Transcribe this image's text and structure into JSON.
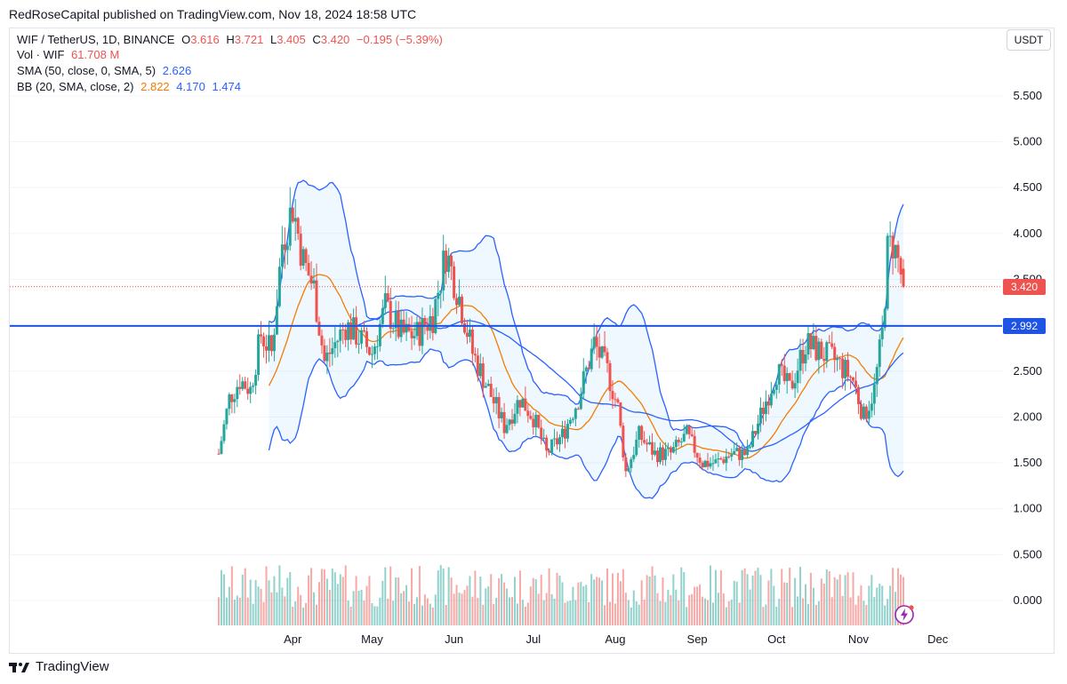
{
  "header": {
    "publisher_line": "RedRoseCapital published on TradingView.com, Nov 18, 2024 18:58 UTC",
    "currency_button": "USDT"
  },
  "legend": {
    "symbol": "WIF / TetherUS, 1D, BINANCE",
    "o_label": "O",
    "o_value": "3.616",
    "h_label": "H",
    "h_value": "3.721",
    "l_label": "L",
    "l_value": "3.405",
    "c_label": "C",
    "c_value": "3.420",
    "change": "−0.195 (−5.39%)",
    "vol_label": "Vol · WIF",
    "vol_value": "61.708 M",
    "sma_label": "SMA (50, close, 0, SMA, 5)",
    "sma_value": "2.626",
    "bb_label": "BB (20, SMA, close, 2)",
    "bb_basis": "2.822",
    "bb_upper": "4.170",
    "bb_lower": "1.474"
  },
  "price_tags": {
    "last": "3.420",
    "horizontal_line": "2.992"
  },
  "footer": {
    "brand": "TradingView"
  },
  "colors": {
    "up": "#26a69a",
    "down": "#ef5350",
    "sma": "#2962ff",
    "bb_basis": "#f57c00",
    "bb_band": "#2962ff",
    "hline": "#1e53e5"
  },
  "chart_data": {
    "type": "candlestick",
    "ylim": [
      0,
      5.7
    ],
    "y_ticks": [
      "5.500",
      "5.000",
      "4.500",
      "4.000",
      "3.500",
      "3.000",
      "2.500",
      "2.000",
      "1.500",
      "1.000",
      "0.500",
      "0.000"
    ],
    "y_tick_values": [
      5.5,
      5.0,
      4.5,
      4.0,
      3.5,
      3.0,
      2.5,
      2.0,
      1.5,
      1.0,
      0.5,
      0.0
    ],
    "x_ticks": [
      "Apr",
      "May",
      "Jun",
      "Jul",
      "Aug",
      "Sep",
      "Oct",
      "Nov",
      "Dec"
    ],
    "x_tick_dates": [
      "2024-04-01",
      "2024-05-01",
      "2024-06-01",
      "2024-07-01",
      "2024-08-01",
      "2024-09-01",
      "2024-10-01",
      "2024-11-01",
      "2024-12-01"
    ],
    "x_range": [
      "2024-03-04",
      "2024-12-31"
    ],
    "horizontal_line": 2.992,
    "close_path": [
      [
        "2024-03-04",
        1.6
      ],
      [
        "2024-03-08",
        2.2
      ],
      [
        "2024-03-12",
        2.4
      ],
      [
        "2024-03-16",
        2.3
      ],
      [
        "2024-03-20",
        2.9
      ],
      [
        "2024-03-24",
        2.7
      ],
      [
        "2024-03-28",
        3.9
      ],
      [
        "2024-04-01",
        4.3
      ],
      [
        "2024-04-05",
        3.7
      ],
      [
        "2024-04-09",
        3.4
      ],
      [
        "2024-04-13",
        2.6
      ],
      [
        "2024-04-17",
        2.8
      ],
      [
        "2024-04-21",
        3.0
      ],
      [
        "2024-04-25",
        2.9
      ],
      [
        "2024-05-01",
        2.7
      ],
      [
        "2024-05-06",
        3.2
      ],
      [
        "2024-05-12",
        2.9
      ],
      [
        "2024-05-18",
        2.9
      ],
      [
        "2024-05-24",
        3.1
      ],
      [
        "2024-05-29",
        3.8
      ],
      [
        "2024-06-03",
        3.3
      ],
      [
        "2024-06-08",
        2.7
      ],
      [
        "2024-06-14",
        2.3
      ],
      [
        "2024-06-20",
        1.9
      ],
      [
        "2024-06-26",
        2.2
      ],
      [
        "2024-07-01",
        2.0
      ],
      [
        "2024-07-06",
        1.6
      ],
      [
        "2024-07-12",
        1.8
      ],
      [
        "2024-07-18",
        2.2
      ],
      [
        "2024-07-24",
        2.8
      ],
      [
        "2024-07-29",
        2.5
      ],
      [
        "2024-08-02",
        2.1
      ],
      [
        "2024-08-05",
        1.4
      ],
      [
        "2024-08-10",
        1.8
      ],
      [
        "2024-08-16",
        1.6
      ],
      [
        "2024-08-22",
        1.6
      ],
      [
        "2024-08-28",
        1.8
      ],
      [
        "2024-09-03",
        1.5
      ],
      [
        "2024-09-08",
        1.5
      ],
      [
        "2024-09-14",
        1.6
      ],
      [
        "2024-09-20",
        1.6
      ],
      [
        "2024-09-26",
        2.1
      ],
      [
        "2024-10-01",
        2.5
      ],
      [
        "2024-10-06",
        2.3
      ],
      [
        "2024-10-12",
        2.8
      ],
      [
        "2024-10-18",
        2.7
      ],
      [
        "2024-10-24",
        2.6
      ],
      [
        "2024-10-30",
        2.4
      ],
      [
        "2024-11-03",
        2.0
      ],
      [
        "2024-11-07",
        2.3
      ],
      [
        "2024-11-10",
        2.9
      ],
      [
        "2024-11-12",
        3.8
      ],
      [
        "2024-11-14",
        3.9
      ],
      [
        "2024-11-16",
        3.7
      ],
      [
        "2024-11-18",
        3.42
      ]
    ],
    "volume_scale_note": "Volume pane shown without axis"
  }
}
